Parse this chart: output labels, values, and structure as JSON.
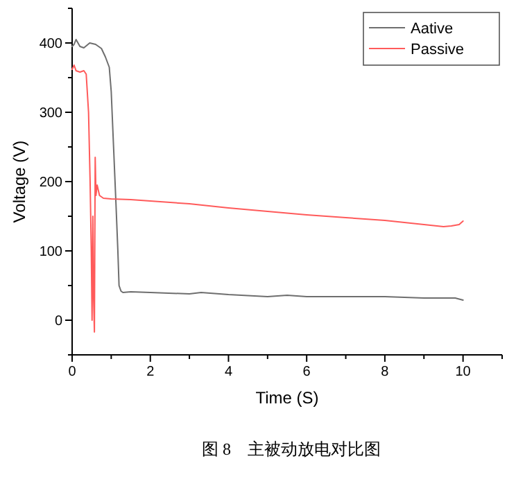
{
  "chart_data": {
    "type": "line",
    "title": "图 8　主被动放电对比图",
    "xlabel": "Time (S)",
    "ylabel": "Voltage (V)",
    "xlim": [
      0,
      11
    ],
    "xticks": [
      0,
      {
        "value": 1,
        "label": null
      },
      2,
      {
        "value": 3,
        "label": null
      },
      4,
      {
        "value": 5,
        "label": null
      },
      6,
      {
        "value": 7,
        "label": null
      },
      8,
      {
        "value": 9,
        "label": null
      },
      10,
      {
        "value": 11,
        "label": null
      }
    ],
    "ylim": [
      -50,
      450
    ],
    "yticks": [
      {
        "value": -50,
        "label": null
      },
      0,
      {
        "value": 50,
        "label": null
      },
      100,
      {
        "value": 150,
        "label": null
      },
      200,
      {
        "value": 250,
        "label": null
      },
      300,
      {
        "value": 350,
        "label": null
      },
      400,
      {
        "value": 450,
        "label": null
      }
    ],
    "grid": false,
    "legend": "top right",
    "marker": "none",
    "line_style": "solid",
    "series": [
      {
        "name": "Aative",
        "color": "#6e6e6e",
        "x": [
          0,
          0.05,
          0.1,
          0.2,
          0.3,
          0.45,
          0.6,
          0.75,
          0.85,
          0.95,
          1.0,
          1.06,
          1.12,
          1.17,
          1.2,
          1.25,
          1.3,
          1.5,
          2,
          3,
          3.3,
          4,
          5,
          5.5,
          6,
          7,
          8,
          9,
          9.8,
          10
        ],
        "values": [
          395,
          398,
          405,
          395,
          393,
          400,
          398,
          392,
          380,
          365,
          330,
          250,
          170,
          100,
          50,
          42,
          40,
          41,
          40,
          38,
          40,
          37,
          34,
          36,
          34,
          34,
          34,
          32,
          32,
          29
        ]
      },
      {
        "name": "Passive",
        "color": "#ff5a5a",
        "x": [
          0,
          0.05,
          0.1,
          0.2,
          0.3,
          0.36,
          0.42,
          0.46,
          0.49,
          0.51,
          0.53,
          0.55,
          0.57,
          0.59,
          0.61,
          0.64,
          0.7,
          0.8,
          1,
          1.5,
          2,
          3,
          4,
          5,
          6,
          7,
          8,
          9,
          9.5,
          9.7,
          9.9,
          10
        ],
        "values": [
          362,
          368,
          360,
          358,
          360,
          355,
          300,
          200,
          100,
          0,
          150,
          30,
          -17,
          235,
          180,
          195,
          180,
          176,
          175,
          174,
          172,
          168,
          162,
          157,
          152,
          148,
          144,
          138,
          135,
          136,
          138,
          143
        ]
      }
    ]
  }
}
